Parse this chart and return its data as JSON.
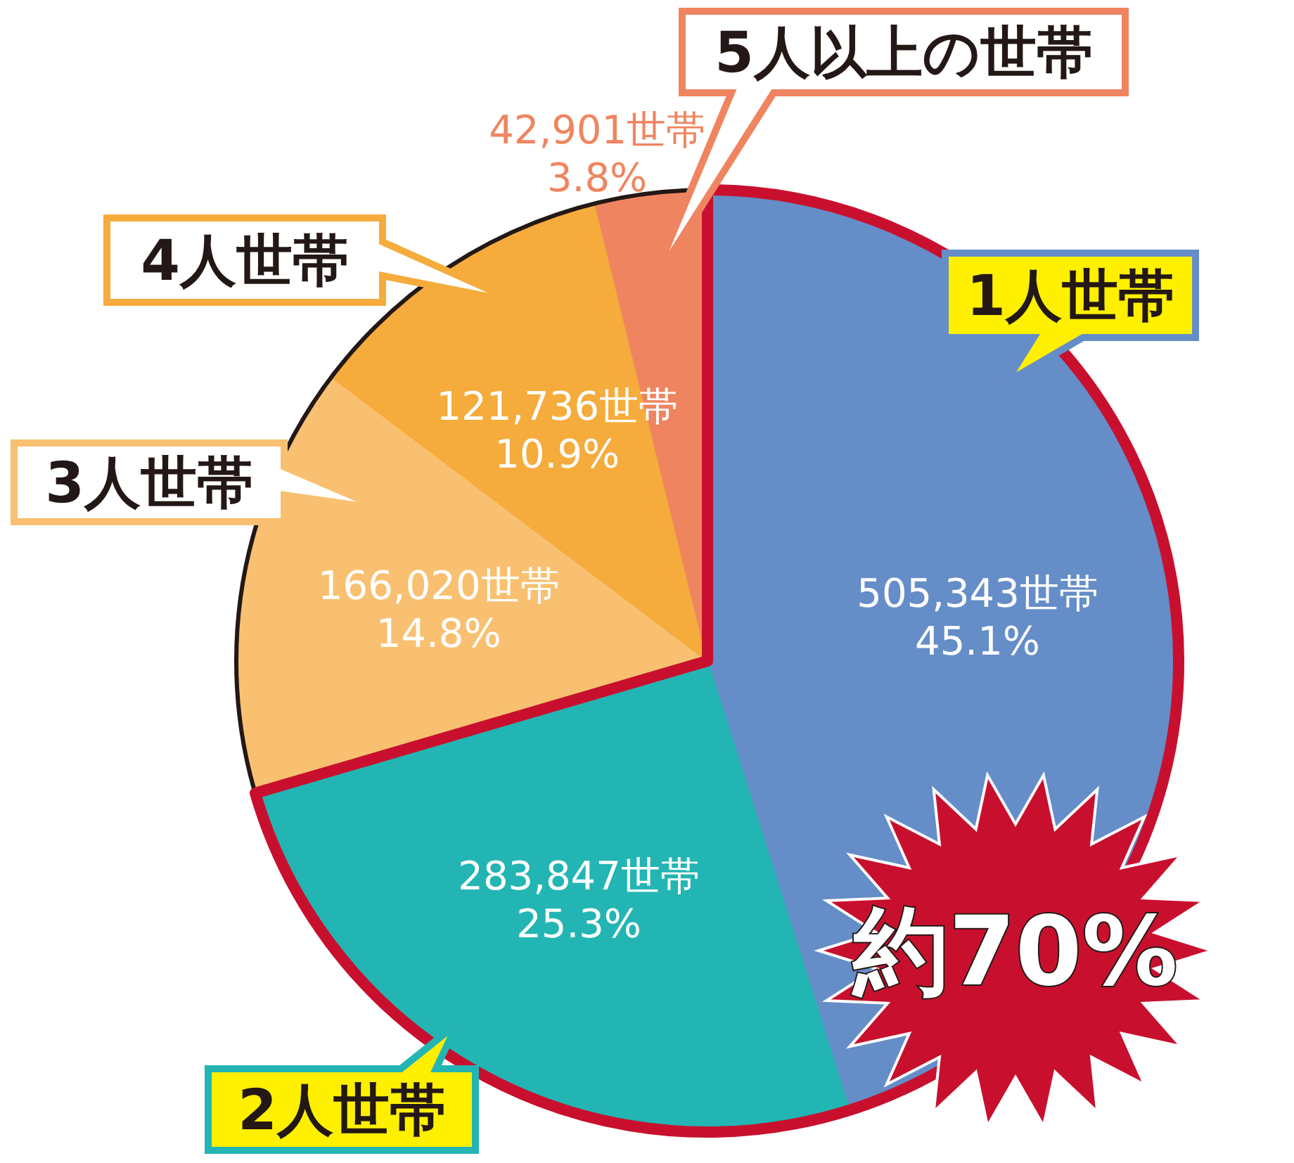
{
  "chart_data": {
    "type": "pie",
    "categories": [
      "1人世帯",
      "2人世帯",
      "3人世帯",
      "4人世帯",
      "5人以上の世帯"
    ],
    "values": [
      505343,
      283847,
      166020,
      121736,
      42901
    ],
    "colors": [
      "#658dc8",
      "#23b5b3",
      "#f8c070",
      "#f5ac3c",
      "#ef8560"
    ],
    "value_labels": [
      "505,343世帯\n45.1%",
      "283,847世帯\n25.3%",
      "166,020世帯\n14.8%",
      "121,736世帯\n10.9%",
      "42,901世帯\n3.8%"
    ],
    "annotations": [
      "約70%"
    ]
  }
}
